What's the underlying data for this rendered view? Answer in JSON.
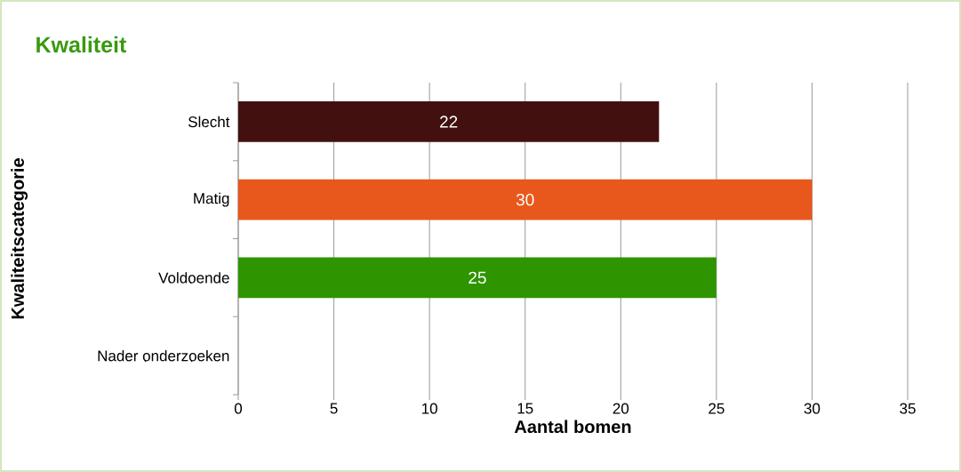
{
  "chart_data": {
    "type": "bar",
    "orientation": "horizontal",
    "title": "Kwaliteit",
    "xlabel": "Aantal bomen",
    "ylabel": "Kwaliteitscategorie",
    "categories": [
      "Slecht",
      "Matig",
      "Voldoende",
      "Nader onderzoeken"
    ],
    "values": [
      22,
      30,
      25,
      null
    ],
    "colors": [
      "#431010",
      "#e8581c",
      "#2e9400",
      "#888888"
    ],
    "xlim": [
      0,
      35
    ],
    "xticks": [
      0,
      5,
      10,
      15,
      20,
      25,
      30,
      35
    ],
    "grid": "x",
    "data_labels": true
  }
}
